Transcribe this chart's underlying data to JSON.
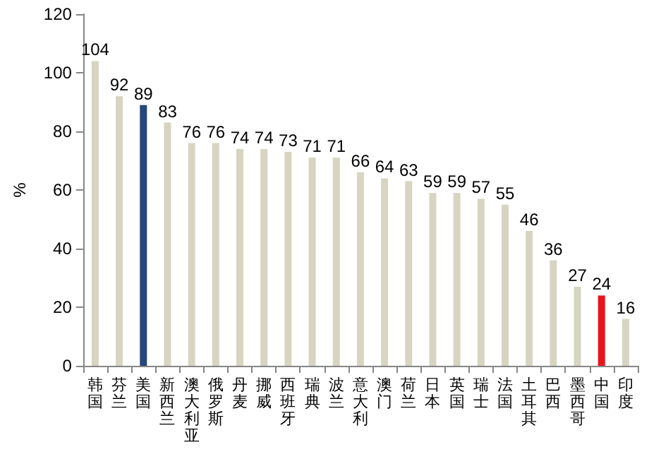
{
  "chart_data": {
    "type": "bar",
    "ylabel": "%",
    "categories": [
      "韩国",
      "芬兰",
      "美国",
      "新西兰",
      "澳大利亚",
      "俄罗斯",
      "丹麦",
      "挪威",
      "西班牙",
      "瑞典",
      "波兰",
      "意大利",
      "澳门",
      "荷兰",
      "日本",
      "英国",
      "瑞士",
      "法国",
      "土耳其",
      "巴西",
      "墨西哥",
      "中国",
      "印度"
    ],
    "values": [
      104,
      92,
      89,
      83,
      76,
      76,
      74,
      74,
      73,
      71,
      71,
      66,
      64,
      63,
      59,
      59,
      57,
      55,
      46,
      36,
      27,
      24,
      16
    ],
    "colors": [
      "#d7d5c1",
      "#d7d5c1",
      "#25477a",
      "#d7d5c1",
      "#d7d5c1",
      "#d7d5c1",
      "#d7d5c1",
      "#d7d5c1",
      "#d7d5c1",
      "#d7d5c1",
      "#d7d5c1",
      "#d7d5c1",
      "#d7d5c1",
      "#d7d5c1",
      "#d7d5c1",
      "#d7d5c1",
      "#d7d5c1",
      "#d7d5c1",
      "#d7d5c1",
      "#d7d5c1",
      "#d7d5c1",
      "#e8141c",
      "#d7d5c1"
    ],
    "ylim": [
      0,
      120
    ],
    "yticks": [
      0,
      20,
      40,
      60,
      80,
      100,
      120
    ],
    "data_labels": true,
    "grid": false
  }
}
